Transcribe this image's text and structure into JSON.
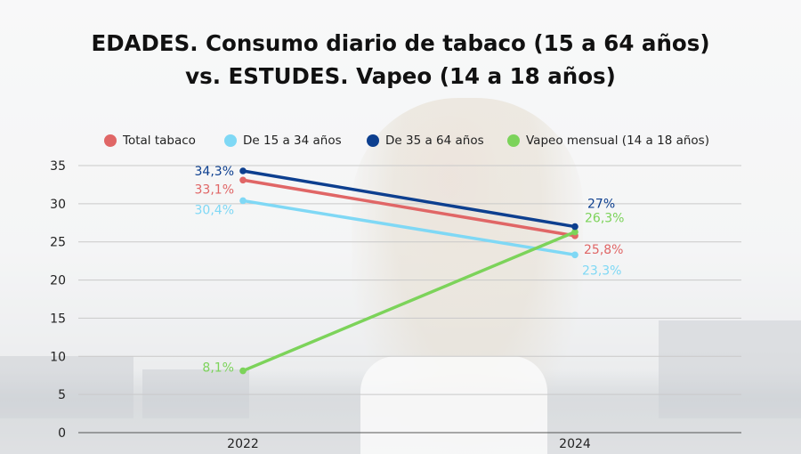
{
  "title_line1": "EDADES. Consumo diario de tabaco (15 a 64 años)",
  "title_line2": "vs. ESTUDES. Vapeo (14 a 18 años)",
  "chart_data": {
    "type": "line",
    "x": [
      "2022",
      "2024"
    ],
    "ylim": [
      0,
      35
    ],
    "yticks": [
      "0",
      "5",
      "10",
      "15",
      "20",
      "25",
      "30",
      "35"
    ],
    "grid": true,
    "legend_position": "top",
    "series": [
      {
        "name": "Total tabaco",
        "color": "#e06666",
        "values": [
          33.1,
          25.8
        ],
        "labels": [
          "33,1%",
          "25,8%"
        ]
      },
      {
        "name": "De 15 a 34 años",
        "color": "#7fd8f5",
        "values": [
          30.4,
          23.3
        ],
        "labels": [
          "30,4%",
          "23,3%"
        ]
      },
      {
        "name": "De 35 a 64 años",
        "color": "#0d3f8f",
        "values": [
          34.3,
          27.0
        ],
        "labels": [
          "34,3%",
          "27%"
        ]
      },
      {
        "name": "Vapeo mensual (14 a 18 años)",
        "color": "#7cd35a",
        "values": [
          8.1,
          26.3
        ],
        "labels": [
          "8,1%",
          "26,3%"
        ]
      }
    ]
  }
}
